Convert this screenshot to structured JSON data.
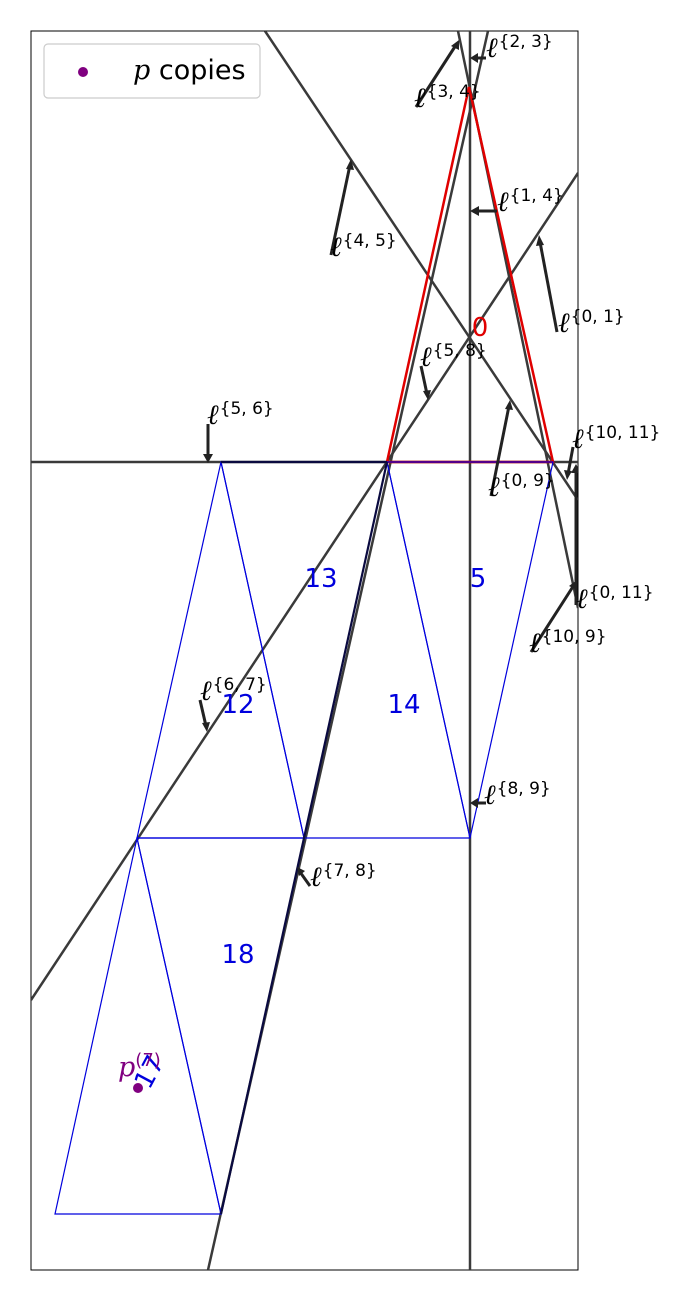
{
  "legend": {
    "label_var": "p",
    "label_rest": " copies",
    "marker_color": "#800080"
  },
  "colors": {
    "red": "#e00000",
    "blue": "#0000dd",
    "purple": "#800080",
    "line": "#3a3a3a"
  },
  "triangle_labels": [
    {
      "id": "tri-0",
      "text": "0",
      "color": "#e00000"
    },
    {
      "id": "tri-5",
      "text": "5",
      "color": "#0000dd"
    },
    {
      "id": "tri-13",
      "text": "13",
      "color": "#0000dd"
    },
    {
      "id": "tri-14",
      "text": "14",
      "color": "#0000dd"
    },
    {
      "id": "tri-12",
      "text": "12",
      "color": "#0000dd"
    },
    {
      "id": "tri-18",
      "text": "18",
      "color": "#0000dd"
    },
    {
      "id": "tri-17",
      "text": "17",
      "color": "#0000dd"
    }
  ],
  "line_labels": [
    {
      "id": "l-2-3",
      "sup": "{2, 3}"
    },
    {
      "id": "l-3-4",
      "sup": "{3, 4}"
    },
    {
      "id": "l-1-4",
      "sup": "{1, 4}"
    },
    {
      "id": "l-4-5",
      "sup": "{4, 5}"
    },
    {
      "id": "l-0-1",
      "sup": "{0, 1}"
    },
    {
      "id": "l-5-8",
      "sup": "{5, 8}"
    },
    {
      "id": "l-5-6",
      "sup": "{5, 6}"
    },
    {
      "id": "l-10-11",
      "sup": "{10, 11}"
    },
    {
      "id": "l-0-9",
      "sup": "{0, 9}"
    },
    {
      "id": "l-0-11",
      "sup": "{0, 11}"
    },
    {
      "id": "l-10-9",
      "sup": "{10, 9}"
    },
    {
      "id": "l-6-7",
      "sup": "{6, 7}"
    },
    {
      "id": "l-8-9",
      "sup": "{8, 9}"
    },
    {
      "id": "l-7-8",
      "sup": "{7, 8}"
    }
  ],
  "point": {
    "base": "p",
    "sup": "(7)",
    "color": "#800080"
  }
}
